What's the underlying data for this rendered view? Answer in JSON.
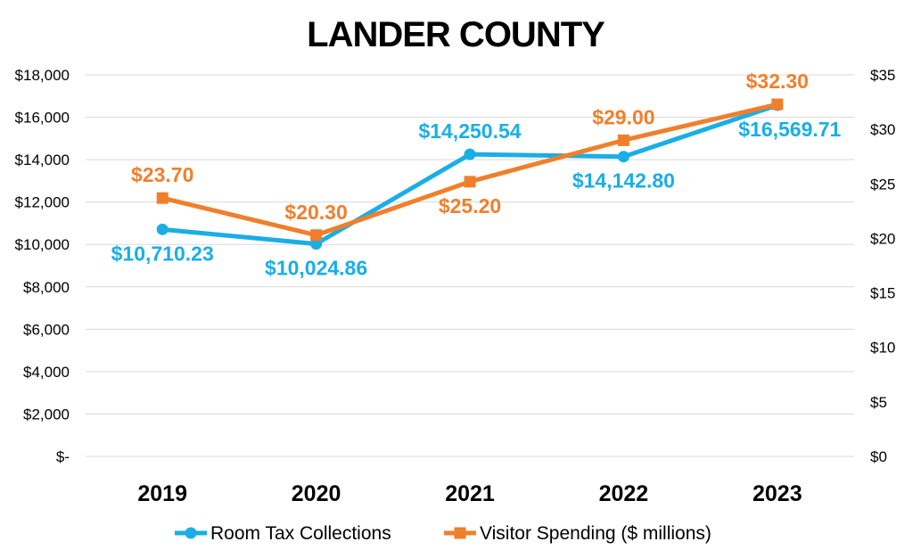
{
  "chart_data": {
    "type": "line",
    "title": "LANDER COUNTY",
    "categories": [
      "2019",
      "2020",
      "2021",
      "2022",
      "2023"
    ],
    "y_left": {
      "ylim": [
        0,
        18000
      ],
      "ticks": [
        0,
        2000,
        4000,
        6000,
        8000,
        10000,
        12000,
        14000,
        16000,
        18000
      ],
      "tick_labels": [
        "$-",
        "$2,000",
        "$4,000",
        "$6,000",
        "$8,000",
        "$10,000",
        "$12,000",
        "$14,000",
        "$16,000",
        "$18,000"
      ]
    },
    "y_right": {
      "ylim": [
        0,
        35
      ],
      "ticks": [
        0,
        5,
        10,
        15,
        20,
        25,
        30,
        35
      ],
      "tick_labels": [
        "$0",
        "$5",
        "$10",
        "$15",
        "$20",
        "$25",
        "$30",
        "$35"
      ]
    },
    "series": [
      {
        "name": "Room Tax Collections",
        "axis": "left",
        "color": "#1aaee6",
        "marker": "circle",
        "values": [
          10710.23,
          10024.86,
          14250.54,
          14142.8,
          16569.71
        ],
        "labels": [
          "$10,710.23",
          "$10,024.86",
          "$14,250.54",
          "$14,142.80",
          "$16,569.71"
        ],
        "label_positions": [
          "below",
          "below",
          "above",
          "below",
          "below"
        ]
      },
      {
        "name": "Visitor Spending ($ millions)",
        "axis": "right",
        "color": "#f07f2c",
        "marker": "square",
        "values": [
          23.7,
          20.3,
          25.2,
          29.0,
          32.3
        ],
        "labels": [
          "$23.70",
          "$20.30",
          "$25.20",
          "$29.00",
          "$32.30"
        ],
        "label_positions": [
          "above",
          "above",
          "below",
          "above",
          "above"
        ]
      }
    ],
    "grid": true,
    "legend_position": "bottom"
  }
}
